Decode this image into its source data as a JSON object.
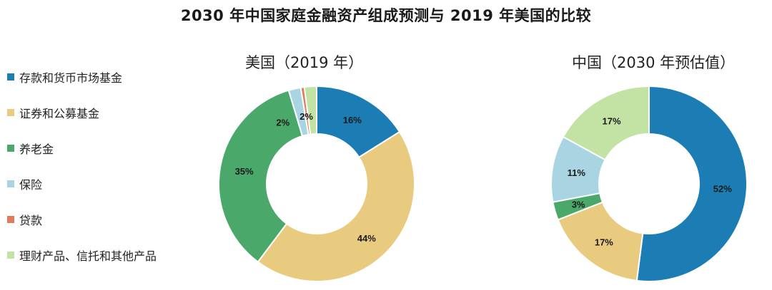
{
  "title": "2030 年中国家庭金融资产组成预测与 2019 年美国的比较",
  "legend": [
    {
      "label": "存款和货币市场基金",
      "color": "#1b7db3"
    },
    {
      "label": "证券和公募基金",
      "color": "#e9cb7f"
    },
    {
      "label": "养老金",
      "color": "#4aa86a"
    },
    {
      "label": "保险",
      "color": "#a9d5e3"
    },
    {
      "label": "贷款",
      "color": "#e07c5c"
    },
    {
      "label": "理财产品、信托和其他产品",
      "color": "#c3e3a4"
    }
  ],
  "chart_data": [
    {
      "type": "pie",
      "title": "美国（2019 年）",
      "categories": [
        "存款和货币市场基金",
        "证券和公募基金",
        "养老金",
        "保险",
        "贷款",
        "理财产品、信托和其他产品"
      ],
      "values": [
        16,
        44,
        35,
        2,
        0.6,
        2
      ],
      "labels": [
        "16%",
        "44%",
        "35%",
        "2%",
        "",
        "2%"
      ]
    },
    {
      "type": "pie",
      "title": "中国（2030 年预估值）",
      "categories": [
        "存款和货币市场基金",
        "证券和公募基金",
        "养老金",
        "保险",
        "贷款",
        "理财产品、信托和其他产品"
      ],
      "values": [
        52,
        17,
        3,
        11,
        0,
        17
      ],
      "labels": [
        "52%",
        "17%",
        "3%",
        "11%",
        "",
        "17%"
      ]
    }
  ]
}
